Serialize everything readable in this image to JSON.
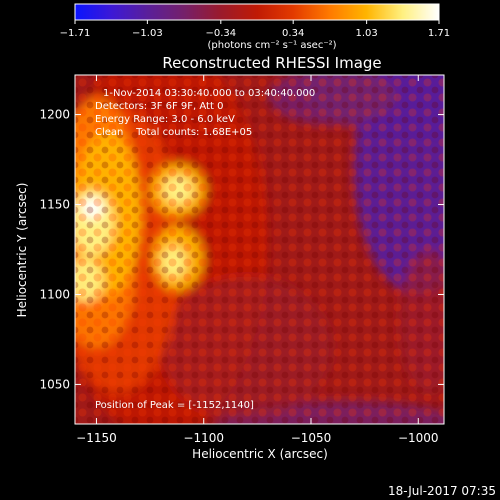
{
  "chart_data": {
    "type": "heatmap",
    "title": "Reconstructed RHESSI Image",
    "xlabel": "Heliocentric X (arcsec)",
    "ylabel": "Heliocentric Y (arcsec)",
    "xlim": [
      -1160,
      -988
    ],
    "ylim": [
      1028,
      1222
    ],
    "xticks": [
      -1150,
      -1100,
      -1050,
      -1000
    ],
    "yticks": [
      1050,
      1100,
      1150,
      1200
    ],
    "xtick_labels": [
      "−1150",
      "−1100",
      "−1050",
      "−1000"
    ],
    "ytick_labels": [
      "1050",
      "1100",
      "1150",
      "1200"
    ],
    "colorbar": {
      "min": -1.71,
      "max": 1.71,
      "ticks": [
        -1.71,
        -1.03,
        -0.34,
        0.34,
        1.03,
        1.71
      ],
      "tick_labels": [
        "−1.71",
        "−1.03",
        "−0.34",
        "0.34",
        "1.03",
        "1.71"
      ],
      "colormap": [
        "#0a14ff",
        "#3c18d6",
        "#5a1f9a",
        "#75206a",
        "#9a1a2c",
        "#c01a05",
        "#e33a00",
        "#ff7a00",
        "#ffb400",
        "#fff080",
        "#ffffff"
      ]
    },
    "peak": {
      "x": -1152,
      "y": 1140
    },
    "annotations": [
      "1-Nov-2014 03:30:40.000 to 03:40:40.000",
      "Detectors: 3F 6F 9F, Att 0",
      "Energy Range: 3.0 - 6.0 keV",
      "Clean    Total counts: 1.68E+05",
      "Position of Peak = [-1152,1140]"
    ],
    "grid": false
  },
  "colorbar_unit": "(photons cm⁻² s⁻¹ asec⁻²)",
  "footer_date": "18-Jul-2017 07:35"
}
